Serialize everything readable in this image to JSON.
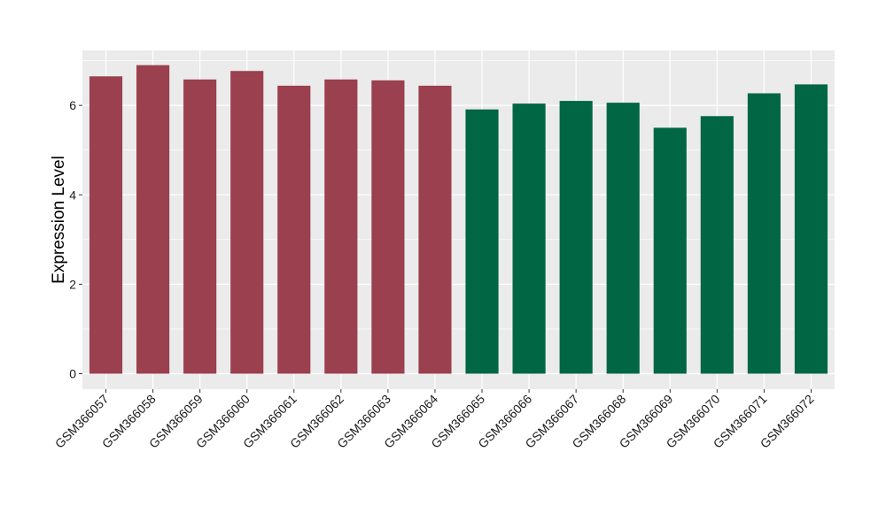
{
  "chart_data": {
    "type": "bar",
    "title": "",
    "xlabel": "",
    "ylabel": "Expression Level",
    "ylim": [
      0,
      7.2
    ],
    "yticks": [
      0,
      2,
      4,
      6
    ],
    "grid": true,
    "legend": "none",
    "categories": [
      "GSM366057",
      "GSM366058",
      "GSM366059",
      "GSM366060",
      "GSM366061",
      "GSM366062",
      "GSM366063",
      "GSM366064",
      "GSM366065",
      "GSM366066",
      "GSM366067",
      "GSM366068",
      "GSM366069",
      "GSM366070",
      "GSM366071",
      "GSM366072"
    ],
    "values": [
      6.65,
      6.9,
      6.58,
      6.77,
      6.44,
      6.58,
      6.56,
      6.44,
      5.91,
      6.04,
      6.1,
      6.06,
      5.5,
      5.76,
      6.27,
      6.47
    ],
    "group_index": [
      0,
      0,
      0,
      0,
      0,
      0,
      0,
      0,
      1,
      1,
      1,
      1,
      1,
      1,
      1,
      1
    ],
    "group_colors": [
      "#9A404E",
      "#006643"
    ],
    "panel_background": "#EBEBEB",
    "grid_color": "#FFFFFF"
  }
}
